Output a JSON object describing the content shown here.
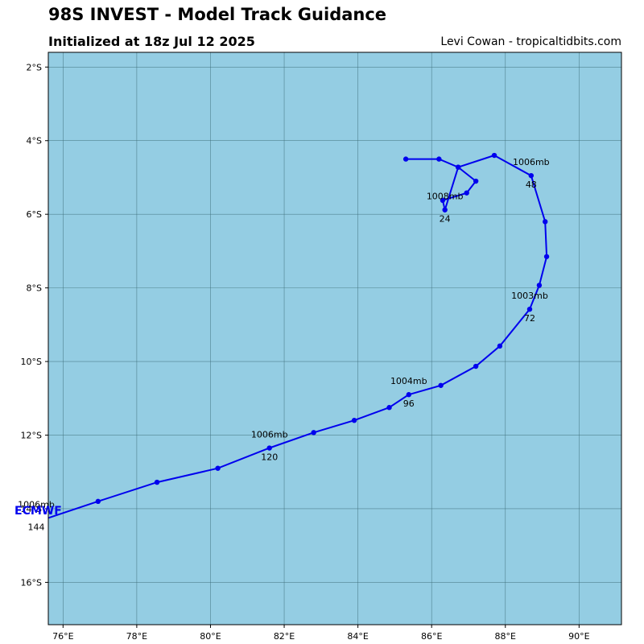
{
  "header": {
    "title": "98S INVEST - Model Track Guidance",
    "subtitle": "Initialized at 18z Jul 12 2025",
    "credit": "Levi Cowan - tropicaltidbits.com"
  },
  "colors": {
    "ocean": "#94cde3",
    "track": "#0000ee",
    "grid": "#3e6e7a"
  },
  "map_data": {
    "lon_range": [
      75.6,
      91.15
    ],
    "lat_range": [
      -17.15,
      -1.6
    ],
    "x_ticks": [
      {
        "value": 76,
        "label": "76°E"
      },
      {
        "value": 78,
        "label": "78°E"
      },
      {
        "value": 80,
        "label": "80°E"
      },
      {
        "value": 82,
        "label": "82°E"
      },
      {
        "value": 84,
        "label": "84°E"
      },
      {
        "value": 86,
        "label": "86°E"
      },
      {
        "value": 88,
        "label": "88°E"
      },
      {
        "value": 90,
        "label": "90°E"
      }
    ],
    "y_ticks": [
      {
        "value": -2,
        "label": "2°S"
      },
      {
        "value": -4,
        "label": "4°S"
      },
      {
        "value": -6,
        "label": "6°S"
      },
      {
        "value": -8,
        "label": "8°S"
      },
      {
        "value": -10,
        "label": "10°S"
      },
      {
        "value": -12,
        "label": "12°S"
      },
      {
        "value": -14,
        "label": "14°S"
      },
      {
        "value": -16,
        "label": "16°S"
      }
    ],
    "model": "ECMWF",
    "track": [
      {
        "lon": 85.3,
        "lat": -4.5
      },
      {
        "lon": 86.2,
        "lat": -4.5
      },
      {
        "lon": 86.72,
        "lat": -4.72
      },
      {
        "lon": 87.2,
        "lat": -5.1
      },
      {
        "lon": 86.95,
        "lat": -5.42
      },
      {
        "lon": 86.3,
        "lat": -5.62
      },
      {
        "lon": 86.36,
        "lat": -5.88
      },
      {
        "lon": 86.72,
        "lat": -4.72
      },
      {
        "lon": 87.7,
        "lat": -4.4
      },
      {
        "lon": 88.7,
        "lat": -4.95
      },
      {
        "lon": 89.08,
        "lat": -6.2
      },
      {
        "lon": 89.12,
        "lat": -7.15
      },
      {
        "lon": 88.92,
        "lat": -7.93
      },
      {
        "lon": 88.66,
        "lat": -8.58
      },
      {
        "lon": 87.85,
        "lat": -9.58
      },
      {
        "lon": 87.2,
        "lat": -10.13
      },
      {
        "lon": 86.25,
        "lat": -10.65
      },
      {
        "lon": 85.38,
        "lat": -10.9
      },
      {
        "lon": 84.85,
        "lat": -11.25
      },
      {
        "lon": 83.9,
        "lat": -11.6
      },
      {
        "lon": 82.8,
        "lat": -11.93
      },
      {
        "lon": 81.6,
        "lat": -12.35
      },
      {
        "lon": 80.2,
        "lat": -12.9
      },
      {
        "lon": 78.55,
        "lat": -13.28
      },
      {
        "lon": 76.95,
        "lat": -13.8
      },
      {
        "lon": 75.6,
        "lat": -14.25
      }
    ],
    "labels": [
      {
        "lon": 86.36,
        "lat": -5.88,
        "pressure": "1008mb",
        "hour": "24"
      },
      {
        "lon": 88.7,
        "lat": -4.95,
        "pressure": "1006mb",
        "hour": "48"
      },
      {
        "lon": 88.66,
        "lat": -8.58,
        "pressure": "1003mb",
        "hour": "72"
      },
      {
        "lon": 85.38,
        "lat": -10.9,
        "pressure": "1004mb",
        "hour": "96"
      },
      {
        "lon": 81.6,
        "lat": -12.35,
        "pressure": "1006mb",
        "hour": "120"
      },
      {
        "lon": 75.6,
        "lat": -14.25,
        "pressure": "1006mb",
        "hour": "144"
      }
    ]
  }
}
